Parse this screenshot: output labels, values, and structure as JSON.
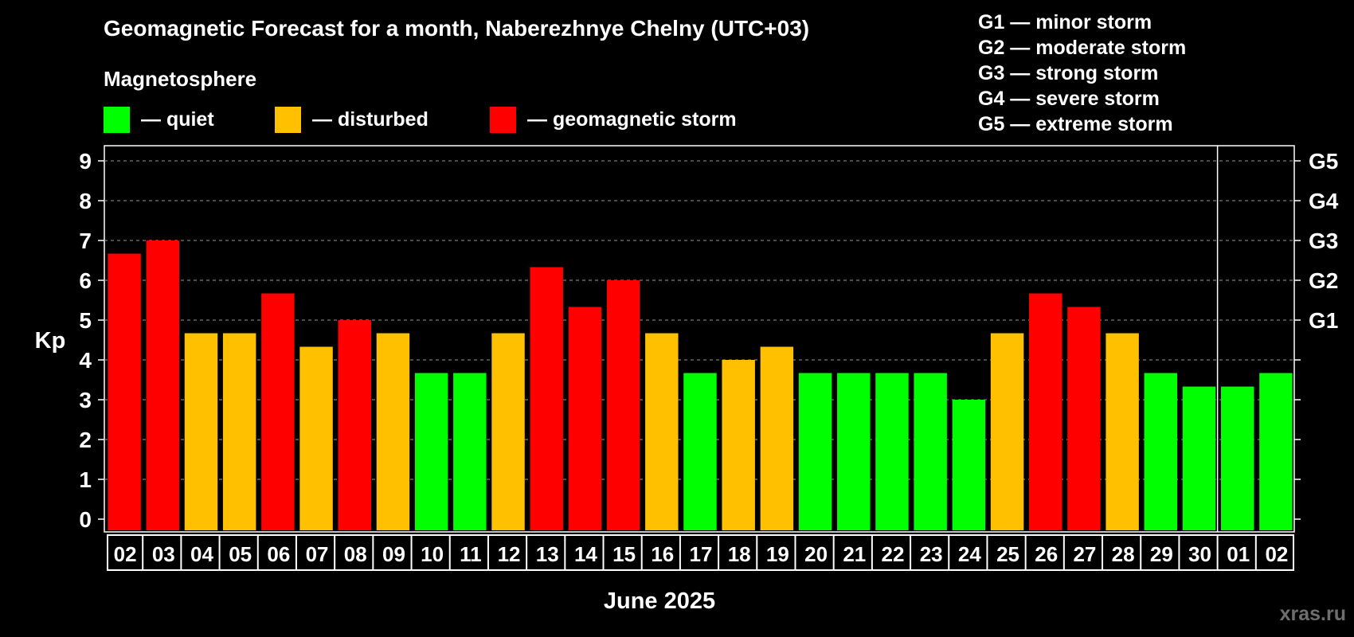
{
  "header": {
    "title": "Geomagnetic Forecast for a month, Naberezhnye Chelny (UTC+03)",
    "subtitle": "Magnetosphere"
  },
  "legend": {
    "quiet": {
      "label": "— quiet",
      "color": "#00ff00"
    },
    "disturbed": {
      "label": "— disturbed",
      "color": "#ffc000"
    },
    "storm": {
      "label": "— geomagnetic storm",
      "color": "#ff0000"
    }
  },
  "g_legend": [
    "G1 — minor storm",
    "G2 — moderate storm",
    "G3 — strong storm",
    "G4 — severe storm",
    "G5 — extreme storm"
  ],
  "watermark": "xras.ru",
  "chart_data": {
    "type": "bar",
    "title": "Geomagnetic Forecast for a month, Naberezhnye Chelny (UTC+03)",
    "xlabel": "June 2025",
    "ylabel": "Kp",
    "ylim": [
      0,
      9
    ],
    "yticks": [
      "0",
      "1",
      "2",
      "3",
      "4",
      "5",
      "6",
      "7",
      "8",
      "9"
    ],
    "right_axis_labels": [
      {
        "value": 5,
        "label": "G1"
      },
      {
        "value": 6,
        "label": "G2"
      },
      {
        "value": 7,
        "label": "G3"
      },
      {
        "value": 8,
        "label": "G4"
      },
      {
        "value": 9,
        "label": "G5"
      }
    ],
    "month_divider_after_index": 28,
    "categories": [
      "02",
      "03",
      "04",
      "05",
      "06",
      "07",
      "08",
      "09",
      "10",
      "11",
      "12",
      "13",
      "14",
      "15",
      "16",
      "17",
      "18",
      "19",
      "20",
      "21",
      "22",
      "23",
      "24",
      "25",
      "26",
      "27",
      "28",
      "29",
      "30",
      "01",
      "02"
    ],
    "values": [
      6.67,
      7.0,
      4.67,
      4.67,
      5.67,
      4.33,
      5.0,
      4.67,
      3.67,
      3.67,
      4.67,
      6.33,
      5.33,
      6.0,
      4.67,
      3.67,
      4.0,
      4.33,
      3.67,
      3.67,
      3.67,
      3.67,
      3.0,
      4.67,
      5.67,
      5.33,
      4.67,
      3.67,
      3.33,
      3.33,
      3.67
    ],
    "levels": [
      "storm",
      "storm",
      "disturbed",
      "disturbed",
      "storm",
      "disturbed",
      "storm",
      "disturbed",
      "quiet",
      "quiet",
      "disturbed",
      "storm",
      "storm",
      "storm",
      "disturbed",
      "quiet",
      "disturbed",
      "disturbed",
      "quiet",
      "quiet",
      "quiet",
      "quiet",
      "quiet",
      "disturbed",
      "storm",
      "storm",
      "disturbed",
      "quiet",
      "quiet",
      "quiet",
      "quiet"
    ],
    "level_colors": {
      "quiet": "#00ff00",
      "disturbed": "#ffc000",
      "storm": "#ff0000"
    },
    "grid": true
  }
}
